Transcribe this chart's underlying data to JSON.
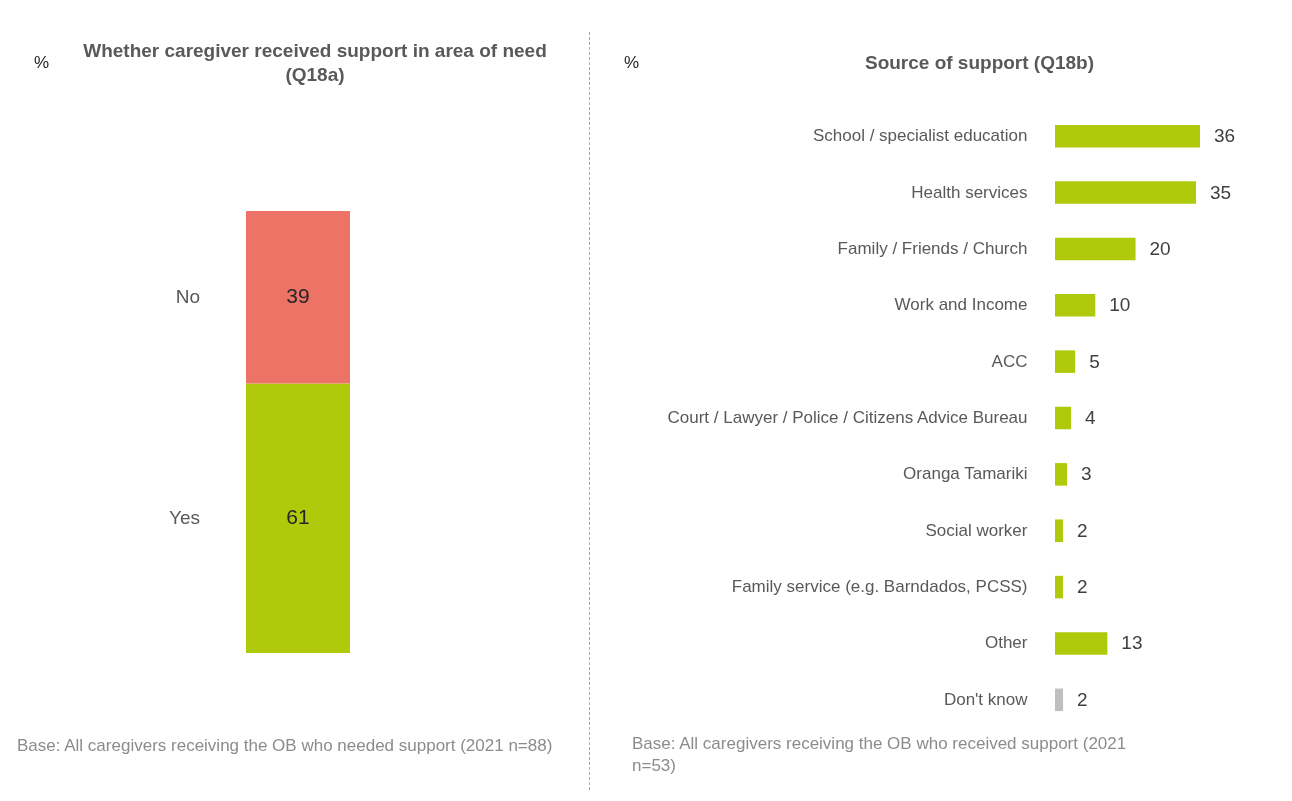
{
  "chart_data": [
    {
      "type": "bar",
      "title": "Whether caregiver received support in area of need (Q18a)",
      "ylabel": "%",
      "categories": [
        null
      ],
      "stacked": true,
      "data_labels": true,
      "series": [
        {
          "name": "Yes",
          "color": "#afca0b",
          "values": [
            61
          ]
        },
        {
          "name": "No",
          "color": "#ed7366",
          "values": [
            39
          ]
        }
      ],
      "annotations": [
        "Base: All caregivers receiving the OB who needed support (2021 n=88)"
      ]
    },
    {
      "type": "bar",
      "orientation": "horizontal",
      "title": "Source of support (Q18b)",
      "xlabel": "%",
      "data_labels": true,
      "categories": [
        "School / specialist education",
        "Health services",
        "Family / Friends / Church",
        "Work and Income",
        "ACC",
        "Court / Lawyer / Police / Citizens Advice Bureau",
        "Oranga Tamariki",
        "Social worker",
        "Family service (e.g. Barndados, PCSS)",
        "Other",
        "Don't know"
      ],
      "values": [
        36,
        35,
        20,
        10,
        5,
        4,
        3,
        2,
        2,
        13,
        2
      ],
      "colors": [
        "#afca0b",
        "#afca0b",
        "#afca0b",
        "#afca0b",
        "#afca0b",
        "#afca0b",
        "#afca0b",
        "#afca0b",
        "#afca0b",
        "#afca0b",
        "#bfbfbf"
      ],
      "annotations": [
        "Base: All caregivers receiving the OB who received support (2021 n=53)"
      ]
    }
  ]
}
